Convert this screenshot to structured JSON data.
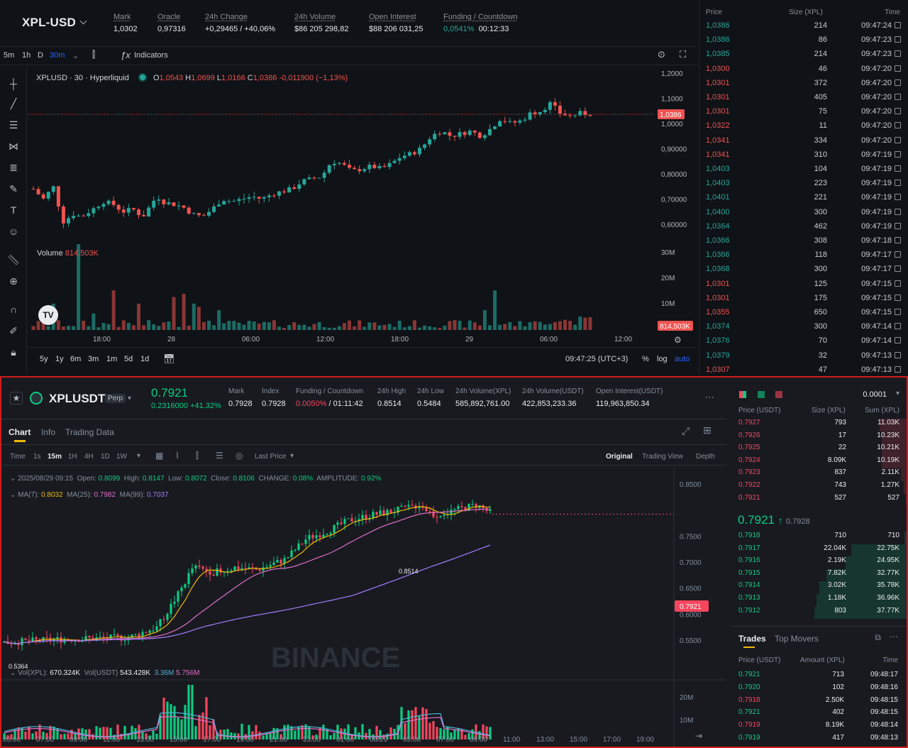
{
  "top": {
    "symbol": "XPL-USD",
    "stats": [
      {
        "label": "Mark",
        "value": "1,0302"
      },
      {
        "label": "Oracle",
        "value": "0,97316"
      },
      {
        "label": "24h Change",
        "value": "+0,29465 / +40,06%"
      },
      {
        "label": "24h Volume",
        "value": "$86 205 298,82"
      },
      {
        "label": "Open Interest",
        "value": "$88 206 031,25"
      },
      {
        "label": "Funding / Countdown",
        "value": "0,0541%",
        "value2": "00:12:33"
      }
    ],
    "toolbar": {
      "tf1": "5m",
      "tf2": "1h",
      "tf3": "D",
      "tf4": "30m",
      "indicators": "Indicators"
    },
    "legend": {
      "title": "XPLUSD · 30 · Hyperliquid",
      "o_label": "O",
      "o": "1,0543",
      "h_label": "H",
      "h": "1,0699",
      "l_label": "L",
      "l": "1,0166",
      "c_label": "C",
      "c": "1,0386",
      "chg": "-0,011900 (−1,13%)"
    },
    "volume": {
      "label": "Volume",
      "value": "814,503K",
      "badge": "814,503K"
    },
    "price_badge": "1,0386",
    "price_axis": [
      "1,2000",
      "1,1000",
      "1,0000",
      "0,90000",
      "0,80000",
      "0,70000",
      "0,60000"
    ],
    "vol_axis": [
      "30M",
      "20M",
      "10M"
    ],
    "time_axis": [
      "18:00",
      "28",
      "06:00",
      "12:00",
      "18:00",
      "29",
      "06:00",
      "12:00"
    ],
    "ranges": [
      "5y",
      "1y",
      "6m",
      "3m",
      "1m",
      "5d",
      "1d"
    ],
    "clock": "09:47:25 (UTC+3)",
    "pct": "%",
    "log": "log",
    "auto": "auto",
    "trades_header": {
      "price": "Price",
      "size": "Size (XPL)",
      "time": "Time"
    },
    "trades": [
      {
        "p": "1,0386",
        "s": "214",
        "t": "09:47:24",
        "side": "buy"
      },
      {
        "p": "1,0386",
        "s": "86",
        "t": "09:47:23",
        "side": "buy"
      },
      {
        "p": "1,0385",
        "s": "214",
        "t": "09:47:23",
        "side": "buy"
      },
      {
        "p": "1,0300",
        "s": "46",
        "t": "09:47:20",
        "side": "sell"
      },
      {
        "p": "1,0301",
        "s": "372",
        "t": "09:47:20",
        "side": "sell"
      },
      {
        "p": "1,0301",
        "s": "405",
        "t": "09:47:20",
        "side": "sell"
      },
      {
        "p": "1,0301",
        "s": "75",
        "t": "09:47:20",
        "side": "sell"
      },
      {
        "p": "1,0322",
        "s": "11",
        "t": "09:47:20",
        "side": "sell"
      },
      {
        "p": "1,0341",
        "s": "334",
        "t": "09:47:20",
        "side": "sell"
      },
      {
        "p": "1,0341",
        "s": "310",
        "t": "09:47:19",
        "side": "sell"
      },
      {
        "p": "1,0403",
        "s": "104",
        "t": "09:47:19",
        "side": "buy"
      },
      {
        "p": "1,0403",
        "s": "223",
        "t": "09:47:19",
        "side": "buy"
      },
      {
        "p": "1,0401",
        "s": "221",
        "t": "09:47:19",
        "side": "buy"
      },
      {
        "p": "1,0400",
        "s": "300",
        "t": "09:47:19",
        "side": "buy"
      },
      {
        "p": "1,0364",
        "s": "462",
        "t": "09:47:19",
        "side": "buy"
      },
      {
        "p": "1,0366",
        "s": "308",
        "t": "09:47:18",
        "side": "buy"
      },
      {
        "p": "1,0366",
        "s": "118",
        "t": "09:47:17",
        "side": "buy"
      },
      {
        "p": "1,0368",
        "s": "300",
        "t": "09:47:17",
        "side": "buy"
      },
      {
        "p": "1,0301",
        "s": "125",
        "t": "09:47:15",
        "side": "sell"
      },
      {
        "p": "1,0301",
        "s": "175",
        "t": "09:47:15",
        "side": "sell"
      },
      {
        "p": "1,0355",
        "s": "650",
        "t": "09:47:15",
        "side": "sell"
      },
      {
        "p": "1,0374",
        "s": "300",
        "t": "09:47:14",
        "side": "buy"
      },
      {
        "p": "1,0376",
        "s": "70",
        "t": "09:47:14",
        "side": "buy"
      },
      {
        "p": "1,0379",
        "s": "32",
        "t": "09:47:13",
        "side": "buy"
      },
      {
        "p": "1,0307",
        "s": "47",
        "t": "09:47:13",
        "side": "sell"
      }
    ]
  },
  "bottom": {
    "symbol": "XPLUSDT",
    "perp": "Perp",
    "last": "0.7921",
    "change": "0.2316000 +41.32%",
    "stats": [
      {
        "label": "Mark",
        "value": "0.7928"
      },
      {
        "label": "Index",
        "value": "0.7928"
      },
      {
        "label": "Funding / Countdown",
        "value": "0.0050%",
        "value2": "/ 01:11:42"
      },
      {
        "label": "24h High",
        "value": "0.8514"
      },
      {
        "label": "24h Low",
        "value": "0.5484"
      },
      {
        "label": "24h Volume(XPL)",
        "value": "585,892,761.00"
      },
      {
        "label": "24h Volume(USDT)",
        "value": "422,853,233.36"
      },
      {
        "label": "Open Interest(USDT)",
        "value": "119,963,850.34"
      }
    ],
    "tabs": [
      "Chart",
      "Info",
      "Trading Data"
    ],
    "intervals": [
      "Time",
      "1s",
      "15m",
      "1H",
      "4H",
      "1D",
      "1W"
    ],
    "last_price_label": "Last Price",
    "views": [
      "Original",
      "Trading View",
      "Depth"
    ],
    "ohlc": {
      "date": "2025/08/29 09:15",
      "open_l": "Open:",
      "open": "0.8099",
      "high_l": "High:",
      "high": "0.8147",
      "low_l": "Low:",
      "low": "0.8072",
      "close_l": "Close:",
      "close": "0.8106",
      "chg_l": "CHANGE:",
      "chg": "0.08%",
      "amp_l": "AMPLITUDE:",
      "amp": "0.92%"
    },
    "ma": {
      "ma7_l": "MA(7):",
      "ma7": "0.8032",
      "ma25_l": "MA(25):",
      "ma25": "0.7982",
      "ma99_l": "MA(99):",
      "ma99": "0.7037"
    },
    "high_mark": "0.8514",
    "low_mark": "0.5364",
    "price_axis": [
      "0.8500",
      "0.7500",
      "0.7000",
      "0.6500",
      "0.6000",
      "0.5500"
    ],
    "price_badge": "0.7921",
    "vol": {
      "l1": "Vol(XPL):",
      "v1": "670.324K",
      "l2": "Vol(USDT)",
      "v2": "543.428K",
      "v3": "3.36M",
      "v4": "5.756M"
    },
    "vol_axis": [
      "20M",
      "10M"
    ],
    "time_axis": [
      "05:00",
      "07:00",
      "09:00",
      "11:00",
      "13:00",
      "15:00",
      "17:00",
      "19:00",
      "21:00",
      "23:00",
      "01:00",
      "08/29",
      "05:00",
      "07:00",
      "09:00",
      "11:00",
      "13:00",
      "15:00",
      "17:00",
      "19:00"
    ],
    "watermark": "BINANCE",
    "orderbook": {
      "tick": "0.0001",
      "hdr": {
        "price": "Price (USDT)",
        "size": "Size (XPL)",
        "sum": "Sum (XPL)"
      },
      "asks": [
        {
          "p": "0.7927",
          "s": "793",
          "m": "11.03K",
          "d": 0.29
        },
        {
          "p": "0.7926",
          "s": "17",
          "m": "10.23K",
          "d": 0.27
        },
        {
          "p": "0.7925",
          "s": "22",
          "m": "10.21K",
          "d": 0.27
        },
        {
          "p": "0.7924",
          "s": "8.09K",
          "m": "10.19K",
          "d": 0.27
        },
        {
          "p": "0.7923",
          "s": "837",
          "m": "2.11K",
          "d": 0.06
        },
        {
          "p": "0.7922",
          "s": "743",
          "m": "1.27K",
          "d": 0.03
        },
        {
          "p": "0.7921",
          "s": "527",
          "m": "527",
          "d": 0.01
        }
      ],
      "mid": "0.7921",
      "mid_mark": "0.7928",
      "bids": [
        {
          "p": "0.7918",
          "s": "710",
          "m": "710",
          "d": 0.02
        },
        {
          "p": "0.7917",
          "s": "22.04K",
          "m": "22.75K",
          "d": 0.6
        },
        {
          "p": "0.7916",
          "s": "2.19K",
          "m": "24.95K",
          "d": 0.66
        },
        {
          "p": "0.7915",
          "s": "7.82K",
          "m": "32.77K",
          "d": 0.87
        },
        {
          "p": "0.7914",
          "s": "3.02K",
          "m": "35.78K",
          "d": 0.95
        },
        {
          "p": "0.7913",
          "s": "1.18K",
          "m": "36.96K",
          "d": 0.98
        },
        {
          "p": "0.7912",
          "s": "803",
          "m": "37.77K",
          "d": 1.0
        }
      ]
    },
    "trades": {
      "tabs": [
        "Trades",
        "Top Movers"
      ],
      "hdr": {
        "price": "Price (USDT)",
        "amount": "Amount (XPL)",
        "time": "Time"
      },
      "rows": [
        {
          "p": "0.7921",
          "a": "713",
          "t": "09:48:17",
          "side": "buy"
        },
        {
          "p": "0.7920",
          "a": "102",
          "t": "09:48:16",
          "side": "buy"
        },
        {
          "p": "0.7918",
          "a": "2.50K",
          "t": "09:48:15",
          "side": "sell"
        },
        {
          "p": "0.7921",
          "a": "402",
          "t": "09:48:15",
          "side": "buy"
        },
        {
          "p": "0.7919",
          "a": "8.19K",
          "t": "09:48:14",
          "side": "sell"
        },
        {
          "p": "0.7919",
          "a": "417",
          "t": "09:48:13",
          "side": "buy"
        }
      ]
    }
  },
  "colors": {
    "up": "#26a69a",
    "down": "#ef5350",
    "up2": "#0ecb81",
    "down2": "#f6465d",
    "accent": "#f0b90b"
  }
}
